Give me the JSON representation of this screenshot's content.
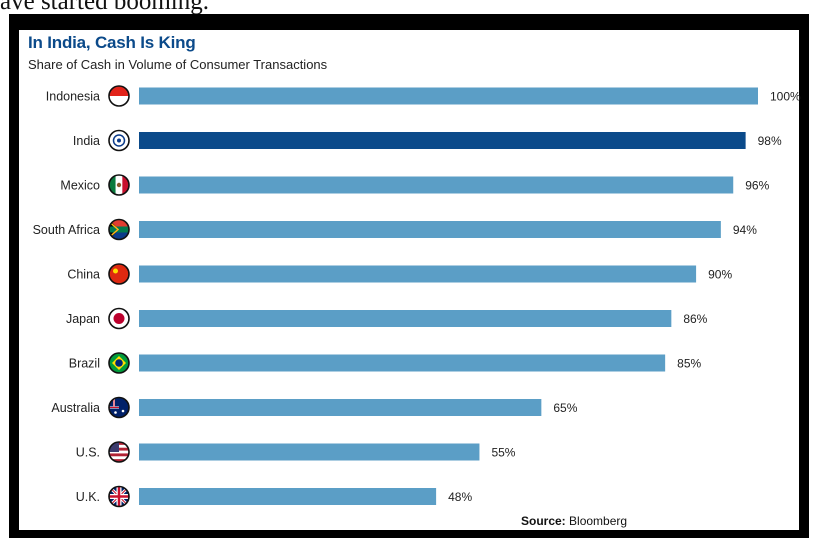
{
  "document": {
    "top_text": "ave started booming."
  },
  "chart_data": {
    "type": "bar",
    "orientation": "horizontal",
    "title": "In India, Cash Is King",
    "subtitle": "Share of Cash in Volume of Consumer Transactions",
    "categories": [
      "Indonesia",
      "India",
      "Mexico",
      "South Africa",
      "China",
      "Japan",
      "Brazil",
      "Australia",
      "U.S.",
      "U.K."
    ],
    "values": [
      100,
      98,
      96,
      94,
      90,
      86,
      85,
      65,
      55,
      48
    ],
    "value_labels": [
      "100%",
      "98%",
      "96%",
      "94%",
      "90%",
      "86%",
      "85%",
      "65%",
      "55%",
      "48%"
    ],
    "flag_icons": [
      "indonesia-flag-icon",
      "india-flag-icon",
      "mexico-flag-icon",
      "south-africa-flag-icon",
      "china-flag-icon",
      "japan-flag-icon",
      "brazil-flag-icon",
      "australia-flag-icon",
      "us-flag-icon",
      "uk-flag-icon"
    ],
    "highlight_category": "India",
    "xlim": [
      0,
      100
    ],
    "colors": {
      "bar": "#5b9ec6",
      "highlight": "#0b4a8a",
      "title": "#0b4a8a"
    },
    "grid": false,
    "legend": "none"
  },
  "footer": {
    "source_label": "Source:",
    "source_value": "Bloomberg"
  }
}
